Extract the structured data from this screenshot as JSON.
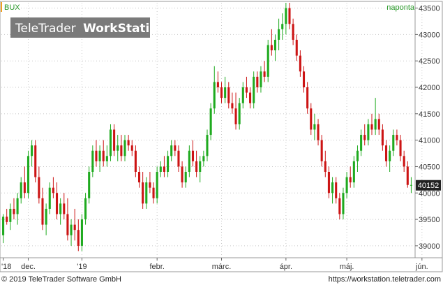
{
  "header": {
    "symbol": "BUX",
    "period": "naponta"
  },
  "watermark": {
    "brand": "TeleTrader",
    "product": "WorkStation"
  },
  "footer": {
    "copyright": "© 2019 TeleTrader Software GmbH",
    "url": "https://workstation.teletrader.com"
  },
  "colors": {
    "up": "#1faa1f",
    "down": "#cc1414",
    "accent": "#f0a020",
    "period_text": "#2a9a2a",
    "watermark_bg": "#7a7a7a",
    "last_label_bg": "#222222"
  },
  "chart_data": {
    "type": "candlestick",
    "title": "",
    "xlabel": "",
    "ylabel": "",
    "ylim": [
      38800,
      43600
    ],
    "y_ticks": [
      39000,
      39500,
      40000,
      40500,
      41000,
      41500,
      42000,
      42500,
      43000,
      43500
    ],
    "x_ticks": [
      {
        "label": "'18",
        "index": 0
      },
      {
        "label": "dec.",
        "index": 7
      },
      {
        "label": "'19",
        "index": 22
      },
      {
        "label": "febr.",
        "index": 43
      },
      {
        "label": "márc.",
        "index": 61
      },
      {
        "label": "ápr.",
        "index": 79
      },
      {
        "label": "máj.",
        "index": 96
      },
      {
        "label": "jún.",
        "index": 117
      }
    ],
    "last_value": "40152",
    "ohlc": [
      [
        39200,
        39600,
        39050,
        39550
      ],
      [
        39550,
        39700,
        39400,
        39450
      ],
      [
        39450,
        39800,
        39300,
        39700
      ],
      [
        39700,
        39900,
        39500,
        39600
      ],
      [
        39600,
        40000,
        39400,
        39900
      ],
      [
        39900,
        40300,
        39800,
        40200
      ],
      [
        40200,
        40500,
        39900,
        40000
      ],
      [
        40000,
        40800,
        39900,
        40700
      ],
      [
        40700,
        41000,
        40500,
        40900
      ],
      [
        40900,
        41000,
        40200,
        40300
      ],
      [
        40300,
        40500,
        39800,
        39900
      ],
      [
        39900,
        40100,
        39300,
        39400
      ],
      [
        39400,
        39800,
        39200,
        39700
      ],
      [
        39700,
        40200,
        39600,
        40100
      ],
      [
        40100,
        40300,
        39900,
        40000
      ],
      [
        40000,
        40200,
        39500,
        39600
      ],
      [
        39600,
        39900,
        39400,
        39800
      ],
      [
        39800,
        40000,
        39500,
        39600
      ],
      [
        39600,
        39900,
        39100,
        39200
      ],
      [
        39200,
        39500,
        39000,
        39400
      ],
      [
        39400,
        39700,
        39100,
        39300
      ],
      [
        39300,
        39500,
        38900,
        39000
      ],
      [
        39000,
        39600,
        38900,
        39500
      ],
      [
        39500,
        40000,
        39400,
        39900
      ],
      [
        39900,
        40500,
        39800,
        40400
      ],
      [
        40400,
        40900,
        40300,
        40800
      ],
      [
        40800,
        41000,
        40500,
        40600
      ],
      [
        40600,
        40900,
        40400,
        40800
      ],
      [
        40800,
        41000,
        40500,
        40600
      ],
      [
        40600,
        40900,
        40500,
        40700
      ],
      [
        40700,
        41300,
        40600,
        41200
      ],
      [
        41200,
        41300,
        40700,
        40800
      ],
      [
        40800,
        41100,
        40600,
        40900
      ],
      [
        40900,
        41100,
        40600,
        40700
      ],
      [
        40700,
        41100,
        40600,
        41000
      ],
      [
        41000,
        41100,
        40800,
        40900
      ],
      [
        40900,
        41000,
        40700,
        40800
      ],
      [
        40800,
        40900,
        40300,
        40400
      ],
      [
        40400,
        40500,
        40100,
        40200
      ],
      [
        40200,
        40400,
        39700,
        39800
      ],
      [
        39800,
        40300,
        39700,
        40200
      ],
      [
        40200,
        40400,
        40000,
        40100
      ],
      [
        40100,
        40200,
        39800,
        39900
      ],
      [
        39900,
        40500,
        39800,
        40400
      ],
      [
        40400,
        40600,
        40300,
        40500
      ],
      [
        40500,
        40700,
        40300,
        40400
      ],
      [
        40400,
        40800,
        40300,
        40700
      ],
      [
        40700,
        41000,
        40600,
        40900
      ],
      [
        40900,
        41000,
        40700,
        40800
      ],
      [
        40800,
        40900,
        40400,
        40500
      ],
      [
        40500,
        40600,
        40100,
        40200
      ],
      [
        40200,
        40500,
        40100,
        40400
      ],
      [
        40400,
        40900,
        40300,
        40800
      ],
      [
        40800,
        41000,
        40500,
        40600
      ],
      [
        40600,
        40800,
        40300,
        40400
      ],
      [
        40400,
        40700,
        40200,
        40600
      ],
      [
        40600,
        40800,
        40500,
        40700
      ],
      [
        40700,
        41200,
        40600,
        41100
      ],
      [
        41100,
        41700,
        41000,
        41600
      ],
      [
        41600,
        42400,
        41500,
        42100
      ],
      [
        42100,
        42300,
        41900,
        42000
      ],
      [
        42000,
        42100,
        41700,
        41800
      ],
      [
        41800,
        42200,
        41700,
        42000
      ],
      [
        42000,
        42100,
        41600,
        41700
      ],
      [
        41700,
        41900,
        41500,
        41600
      ],
      [
        41600,
        41900,
        41200,
        41300
      ],
      [
        41300,
        41800,
        41200,
        41700
      ],
      [
        41700,
        42100,
        41600,
        42000
      ],
      [
        42000,
        42200,
        41800,
        41900
      ],
      [
        41900,
        42000,
        41600,
        41700
      ],
      [
        41700,
        42300,
        41600,
        42200
      ],
      [
        42200,
        42300,
        41900,
        42000
      ],
      [
        42000,
        42400,
        41900,
        42300
      ],
      [
        42300,
        42500,
        42100,
        42200
      ],
      [
        42200,
        42900,
        42100,
        42800
      ],
      [
        42800,
        43100,
        42600,
        42700
      ],
      [
        42700,
        43000,
        42500,
        42900
      ],
      [
        42900,
        43300,
        42700,
        43100
      ],
      [
        43100,
        43400,
        42900,
        43200
      ],
      [
        43200,
        43600,
        43000,
        43500
      ],
      [
        43500,
        43600,
        43100,
        43200
      ],
      [
        43200,
        43300,
        42800,
        42900
      ],
      [
        42900,
        43000,
        42500,
        42600
      ],
      [
        42600,
        42700,
        42200,
        42300
      ],
      [
        42300,
        42400,
        41900,
        42000
      ],
      [
        42000,
        42100,
        41500,
        41600
      ],
      [
        41600,
        41700,
        41100,
        41200
      ],
      [
        41200,
        41500,
        41000,
        41300
      ],
      [
        41300,
        41400,
        40900,
        41000
      ],
      [
        41000,
        41100,
        40500,
        40600
      ],
      [
        40600,
        40800,
        40300,
        40400
      ],
      [
        40400,
        40500,
        39900,
        40000
      ],
      [
        40000,
        40300,
        39800,
        40200
      ],
      [
        40200,
        40300,
        39800,
        39900
      ],
      [
        39900,
        40000,
        39500,
        39600
      ],
      [
        39600,
        40100,
        39500,
        40000
      ],
      [
        40000,
        40400,
        39900,
        40300
      ],
      [
        40300,
        40500,
        40100,
        40200
      ],
      [
        40200,
        40700,
        40100,
        40600
      ],
      [
        40600,
        40900,
        40400,
        40800
      ],
      [
        40800,
        41200,
        40700,
        41100
      ],
      [
        41100,
        41300,
        40900,
        41000
      ],
      [
        41000,
        41400,
        40900,
        41300
      ],
      [
        41300,
        41500,
        41100,
        41200
      ],
      [
        41200,
        41800,
        41100,
        41400
      ],
      [
        41400,
        41500,
        41100,
        41200
      ],
      [
        41200,
        41300,
        40800,
        40900
      ],
      [
        40900,
        41000,
        40500,
        40600
      ],
      [
        40600,
        40900,
        40400,
        40800
      ],
      [
        40800,
        41200,
        40700,
        41100
      ],
      [
        41100,
        41200,
        40900,
        41000
      ],
      [
        41000,
        41100,
        40600,
        40700
      ],
      [
        40700,
        40800,
        40400,
        40500
      ],
      [
        40500,
        40600,
        40100,
        40152
      ],
      [
        40152,
        40300,
        40000,
        40152
      ]
    ]
  }
}
